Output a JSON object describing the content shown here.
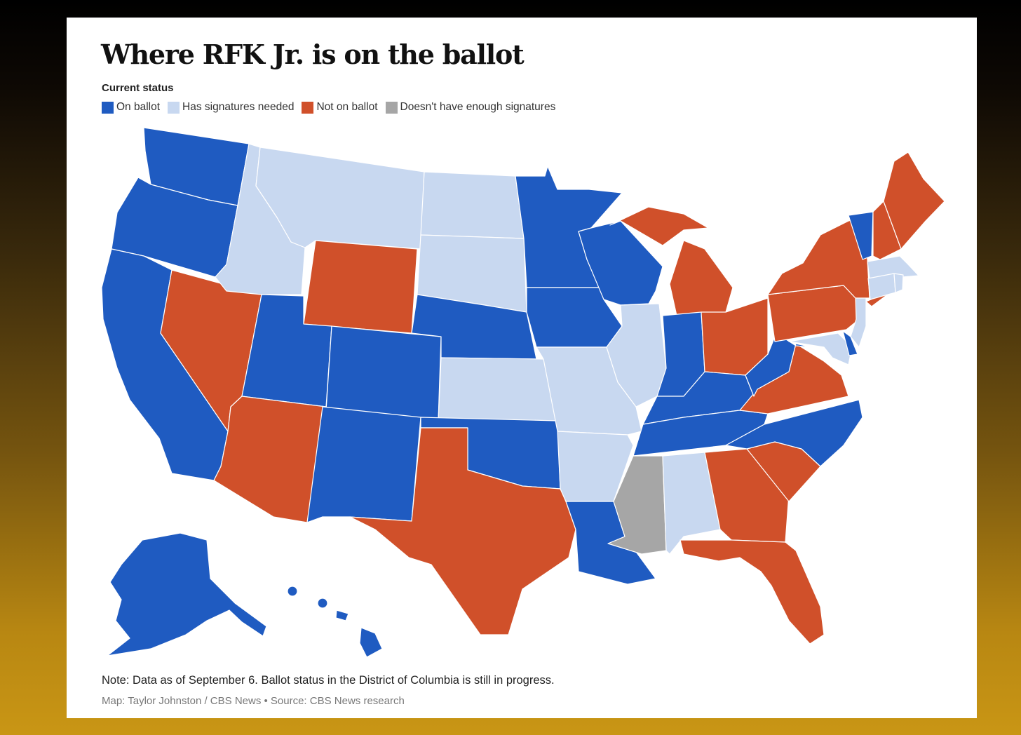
{
  "title": "Where RFK Jr. is on the ballot",
  "legend": {
    "heading": "Current status",
    "items": [
      {
        "key": "on",
        "label": "On ballot",
        "color": "#1f5bc1"
      },
      {
        "key": "sig",
        "label": "Has signatures needed",
        "color": "#c8d8f0"
      },
      {
        "key": "not",
        "label": "Not on ballot",
        "color": "#d0502a"
      },
      {
        "key": "nes",
        "label": "Doesn't have enough signatures",
        "color": "#a6a6a6"
      }
    ]
  },
  "states": {
    "WA": "on",
    "OR": "on",
    "CA": "on",
    "NV": "not",
    "ID": "sig",
    "MT": "sig",
    "WY": "not",
    "UT": "on",
    "AZ": "not",
    "CO": "on",
    "NM": "on",
    "ND": "sig",
    "SD": "sig",
    "NE": "on",
    "KS": "sig",
    "OK": "on",
    "TX": "not",
    "MN": "on",
    "IA": "on",
    "MO": "sig",
    "AR": "sig",
    "LA": "on",
    "WI": "on",
    "IL": "sig",
    "MI": "not",
    "IN": "on",
    "OH": "not",
    "KY": "on",
    "TN": "on",
    "MS": "nes",
    "AL": "sig",
    "GA": "not",
    "FL": "not",
    "SC": "not",
    "NC": "on",
    "VA": "not",
    "WV": "on",
    "PA": "not",
    "NY": "not",
    "VT": "on",
    "NH": "not",
    "ME": "not",
    "MA": "sig",
    "CT": "sig",
    "RI": "sig",
    "NJ": "sig",
    "DE": "on",
    "MD": "sig",
    "AK": "on",
    "HI": "on"
  },
  "note": "Note: Data as of September 6. Ballot status in the District of Columbia is still in progress.",
  "credit": "Map: Taylor Johnston / CBS News • Source: CBS News research"
}
